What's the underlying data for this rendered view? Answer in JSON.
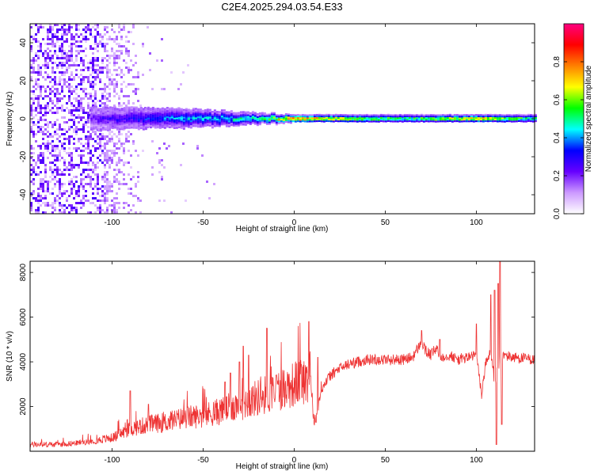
{
  "title": "C2E4.2025.294.03.54.E33",
  "chart_data": [
    {
      "type": "heatmap",
      "name": "spectrogram",
      "xlabel": "Height of straight line (km)",
      "ylabel": "Frequency (Hz)",
      "xlim": [
        -145,
        132
      ],
      "ylim": [
        -50,
        50
      ],
      "xticks": [
        -100,
        -50,
        0,
        50,
        100
      ],
      "yticks": [
        -40,
        -20,
        0,
        20,
        40
      ],
      "colorbar": {
        "label": "Normalized spectral amplitude",
        "range": [
          0,
          1
        ],
        "ticks": [
          0.0,
          0.2,
          0.4,
          0.6,
          0.8
        ],
        "tick_labels": [
          "0.0",
          "0.2",
          "0.4",
          "0.6",
          "0.8"
        ],
        "colormap": [
          "#ffffff",
          "#cc99ff",
          "#6600ff",
          "#0000ff",
          "#00ffff",
          "#00ff00",
          "#ffff00",
          "#ff8000",
          "#ff0000",
          "#ff0080"
        ]
      },
      "ridge": {
        "center_frequency": 0,
        "description_points": [
          {
            "x": -110,
            "halfwidth": 6,
            "amplitude": 0.25
          },
          {
            "x": -60,
            "halfwidth": 5,
            "amplitude": 0.45
          },
          {
            "x": -20,
            "halfwidth": 3,
            "amplitude": 0.55
          },
          {
            "x": 0,
            "halfwidth": 2,
            "amplitude": 0.9
          },
          {
            "x": 60,
            "halfwidth": 2,
            "amplitude": 0.6
          },
          {
            "x": 100,
            "halfwidth": 2,
            "amplitude": 0.85
          },
          {
            "x": 130,
            "halfwidth": 2,
            "amplitude": 0.6
          }
        ]
      }
    },
    {
      "type": "line",
      "name": "snr",
      "xlabel": "Height of straight line (km)",
      "ylabel": "SNR (10 * v/v)",
      "xlim": [
        -145,
        132
      ],
      "ylim": [
        0,
        8500
      ],
      "xticks": [
        -100,
        -50,
        0,
        50,
        100
      ],
      "yticks": [
        2000,
        4000,
        6000,
        8000
      ],
      "color": "#ee3333",
      "envelope": {
        "x": [
          -145,
          -130,
          -115,
          -100,
          -90,
          -80,
          -70,
          -60,
          -50,
          -40,
          -30,
          -20,
          -10,
          0,
          5,
          8,
          9,
          10,
          11,
          12,
          15,
          20,
          25,
          30,
          40,
          50,
          60,
          65,
          70,
          72,
          75,
          78,
          80,
          85,
          90,
          95,
          100,
          103,
          105,
          108,
          110,
          112,
          115,
          120,
          132
        ],
        "y": [
          300,
          300,
          400,
          600,
          1000,
          1200,
          1300,
          1500,
          1600,
          1800,
          2100,
          2400,
          2700,
          3000,
          3200,
          3300,
          4200,
          2000,
          1300,
          1500,
          2800,
          3400,
          3700,
          3900,
          4100,
          4100,
          4100,
          4200,
          4900,
          4500,
          4300,
          4600,
          4200,
          4300,
          4100,
          4200,
          4300,
          2500,
          3900,
          4500,
          3000,
          3800,
          4300,
          4200,
          4100
        ]
      },
      "spikes": [
        {
          "x": -90,
          "y": 2700
        },
        {
          "x": -80,
          "y": 2100
        },
        {
          "x": -38,
          "y": 3100
        },
        {
          "x": -35,
          "y": 3500
        },
        {
          "x": -30,
          "y": 4000
        },
        {
          "x": -28,
          "y": 4700
        },
        {
          "x": -25,
          "y": 4300
        },
        {
          "x": -15,
          "y": 5500
        },
        {
          "x": -10,
          "y": 3400
        },
        {
          "x": 8,
          "y": 5800
        },
        {
          "x": 13,
          "y": 4200
        },
        {
          "x": 70,
          "y": 5400
        },
        {
          "x": 80,
          "y": 5000
        },
        {
          "x": 100,
          "y": 5700
        },
        {
          "x": 108,
          "y": 7000
        },
        {
          "x": 110,
          "y": 7200
        },
        {
          "x": 111,
          "y": 300
        },
        {
          "x": 112,
          "y": 7500
        },
        {
          "x": 113,
          "y": 8500
        },
        {
          "x": 114,
          "y": 1200
        }
      ]
    }
  ]
}
